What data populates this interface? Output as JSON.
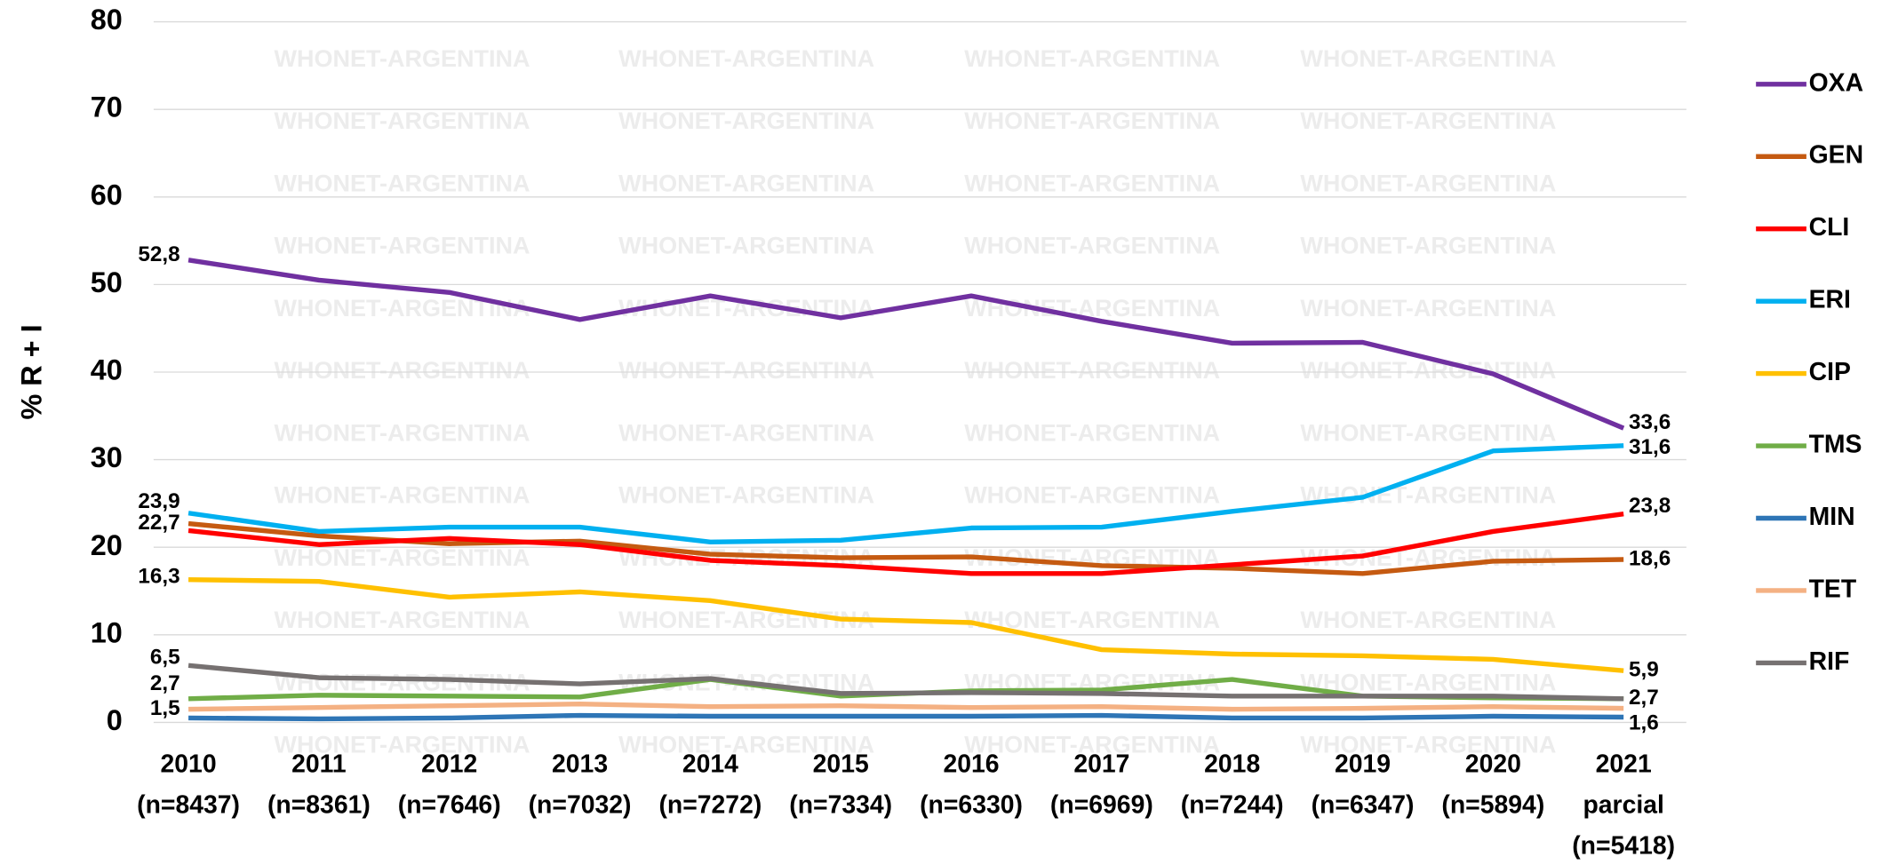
{
  "chart_data": {
    "type": "line",
    "y_label": "% R + I",
    "watermark": "WHONET-ARGENTINA",
    "categories": [
      [
        "2010",
        "(n=8437)"
      ],
      [
        "2011",
        "(n=8361)"
      ],
      [
        "2012",
        "(n=7646)"
      ],
      [
        "2013",
        "(n=7032)"
      ],
      [
        "2014",
        "(n=7272)"
      ],
      [
        "2015",
        "(n=7334)"
      ],
      [
        "2016",
        "(n=6330)"
      ],
      [
        "2017",
        "(n=6969)"
      ],
      [
        "2018",
        "(n=7244)"
      ],
      [
        "2019",
        "(n=6347)"
      ],
      [
        "2020",
        "(n=5894)"
      ],
      [
        "2021",
        "parcial",
        "(n=5418)"
      ]
    ],
    "ylim": [
      0,
      80
    ],
    "yticks": [
      0,
      10,
      20,
      30,
      40,
      50,
      60,
      70,
      80
    ],
    "grid": true,
    "legend": "right",
    "series": [
      {
        "name": "OXA",
        "color": "#7030a0",
        "values": [
          52.8,
          50.5,
          49.1,
          46.0,
          48.7,
          46.2,
          48.7,
          45.8,
          43.3,
          43.4,
          39.8,
          33.6
        ],
        "value_labels": [
          "52,8",
          null,
          null,
          null,
          null,
          null,
          null,
          null,
          null,
          null,
          null,
          "33,6"
        ]
      },
      {
        "name": "GEN",
        "color": "#c55a11",
        "values": [
          22.7,
          21.3,
          20.4,
          20.7,
          19.2,
          18.8,
          18.9,
          17.9,
          17.6,
          17.0,
          18.4,
          18.6
        ],
        "value_labels": [
          "22,7",
          null,
          null,
          null,
          null,
          null,
          null,
          null,
          null,
          null,
          null,
          "18,6"
        ]
      },
      {
        "name": "CLI",
        "color": "#ff0000",
        "values": [
          21.9,
          20.3,
          21.0,
          20.3,
          18.5,
          17.9,
          17.0,
          17.0,
          18.0,
          19.0,
          21.8,
          23.8
        ],
        "value_labels": [
          null,
          null,
          null,
          null,
          null,
          null,
          null,
          null,
          null,
          null,
          null,
          "23,8"
        ]
      },
      {
        "name": "ERI",
        "color": "#00b0f0",
        "values": [
          23.9,
          21.8,
          22.3,
          22.3,
          20.6,
          20.8,
          22.2,
          22.3,
          24.1,
          25.7,
          31.0,
          31.6
        ],
        "value_labels": [
          "23,9",
          null,
          null,
          null,
          null,
          null,
          null,
          null,
          null,
          null,
          null,
          "31,6"
        ]
      },
      {
        "name": "CIP",
        "color": "#ffc000",
        "values": [
          16.3,
          16.1,
          14.3,
          14.9,
          13.9,
          11.8,
          11.4,
          8.3,
          7.8,
          7.6,
          7.2,
          5.9
        ],
        "value_labels": [
          "16,3",
          null,
          null,
          null,
          null,
          null,
          null,
          null,
          null,
          null,
          null,
          "5,9"
        ]
      },
      {
        "name": "TMS",
        "color": "#70ad47",
        "values": [
          2.7,
          3.1,
          3.0,
          2.9,
          4.9,
          3.0,
          3.6,
          3.7,
          4.9,
          3.0,
          2.8,
          2.7
        ],
        "value_labels": [
          "2,7",
          null,
          null,
          null,
          null,
          null,
          null,
          null,
          null,
          null,
          null,
          "2,7"
        ]
      },
      {
        "name": "MIN",
        "color": "#2e75b6",
        "values": [
          0.5,
          0.4,
          0.5,
          0.8,
          0.7,
          0.7,
          0.7,
          0.8,
          0.5,
          0.5,
          0.7,
          0.6
        ]
      },
      {
        "name": "TET",
        "color": "#f4b183",
        "values": [
          1.5,
          1.7,
          1.9,
          2.1,
          1.8,
          1.9,
          1.7,
          1.8,
          1.5,
          1.6,
          1.8,
          1.6
        ],
        "value_labels": [
          "1,5",
          null,
          null,
          null,
          null,
          null,
          null,
          null,
          null,
          null,
          null,
          "1,6"
        ]
      },
      {
        "name": "RIF",
        "color": "#767171",
        "values": [
          6.5,
          5.1,
          4.9,
          4.4,
          5.0,
          3.3,
          3.4,
          3.3,
          3.0,
          3.0,
          3.0,
          2.7
        ],
        "value_labels": [
          "6,5",
          null,
          null,
          null,
          null,
          null,
          null,
          null,
          null,
          null,
          null,
          null
        ]
      }
    ]
  }
}
